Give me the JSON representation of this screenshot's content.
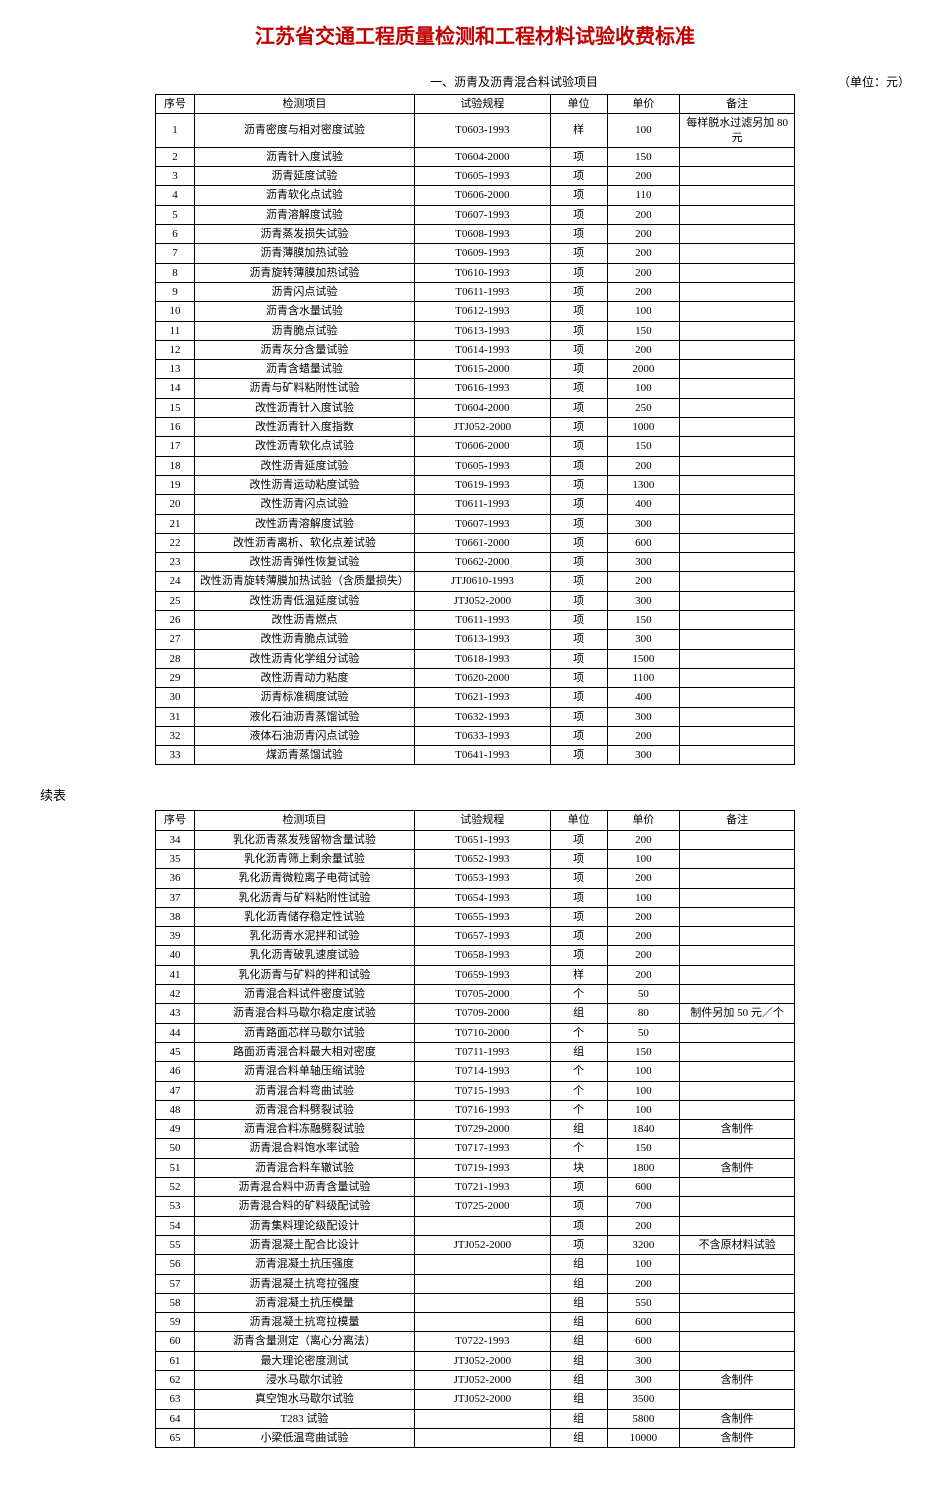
{
  "title": "江苏省交通工程质量检测和工程材料试验收费标准",
  "section1_label": "一、沥青及沥青混合料试验项目",
  "unit_label": "（单位：元）",
  "continue_label": "续表",
  "headers": {
    "seq": "序号",
    "item": "检测项目",
    "spec": "试验规程",
    "unit": "单位",
    "price": "单价",
    "note": "备注"
  },
  "table1": [
    {
      "seq": "1",
      "item": "沥青密度与相对密度试验",
      "spec": "T0603-1993",
      "unit": "样",
      "price": "100",
      "note": "每样脱水过滤另加 80 元"
    },
    {
      "seq": "2",
      "item": "沥青针入度试验",
      "spec": "T0604-2000",
      "unit": "项",
      "price": "150",
      "note": ""
    },
    {
      "seq": "3",
      "item": "沥青延度试验",
      "spec": "T0605-1993",
      "unit": "项",
      "price": "200",
      "note": ""
    },
    {
      "seq": "4",
      "item": "沥青软化点试验",
      "spec": "T0606-2000",
      "unit": "项",
      "price": "110",
      "note": ""
    },
    {
      "seq": "5",
      "item": "沥青溶解度试验",
      "spec": "T0607-1993",
      "unit": "项",
      "price": "200",
      "note": ""
    },
    {
      "seq": "6",
      "item": "沥青蒸发损失试验",
      "spec": "T0608-1993",
      "unit": "项",
      "price": "200",
      "note": ""
    },
    {
      "seq": "7",
      "item": "沥青薄膜加热试验",
      "spec": "T0609-1993",
      "unit": "项",
      "price": "200",
      "note": ""
    },
    {
      "seq": "8",
      "item": "沥青旋转薄膜加热试验",
      "spec": "T0610-1993",
      "unit": "项",
      "price": "200",
      "note": ""
    },
    {
      "seq": "9",
      "item": "沥青闪点试验",
      "spec": "T0611-1993",
      "unit": "项",
      "price": "200",
      "note": ""
    },
    {
      "seq": "10",
      "item": "沥青含水量试验",
      "spec": "T0612-1993",
      "unit": "项",
      "price": "100",
      "note": ""
    },
    {
      "seq": "11",
      "item": "沥青脆点试验",
      "spec": "T0613-1993",
      "unit": "项",
      "price": "150",
      "note": ""
    },
    {
      "seq": "12",
      "item": "沥青灰分含量试验",
      "spec": "T0614-1993",
      "unit": "项",
      "price": "200",
      "note": ""
    },
    {
      "seq": "13",
      "item": "沥青含蜡量试验",
      "spec": "T0615-2000",
      "unit": "项",
      "price": "2000",
      "note": ""
    },
    {
      "seq": "14",
      "item": "沥青与矿料粘附性试验",
      "spec": "T0616-1993",
      "unit": "项",
      "price": "100",
      "note": ""
    },
    {
      "seq": "15",
      "item": "改性沥青针入度试验",
      "spec": "T0604-2000",
      "unit": "项",
      "price": "250",
      "note": ""
    },
    {
      "seq": "16",
      "item": "改性沥青针入度指数",
      "spec": "JTJ052-2000",
      "unit": "项",
      "price": "1000",
      "note": ""
    },
    {
      "seq": "17",
      "item": "改性沥青软化点试验",
      "spec": "T0606-2000",
      "unit": "项",
      "price": "150",
      "note": ""
    },
    {
      "seq": "18",
      "item": "改性沥青延度试验",
      "spec": "T0605-1993",
      "unit": "项",
      "price": "200",
      "note": ""
    },
    {
      "seq": "19",
      "item": "改性沥青运动粘度试验",
      "spec": "T0619-1993",
      "unit": "项",
      "price": "1300",
      "note": ""
    },
    {
      "seq": "20",
      "item": "改性沥青闪点试验",
      "spec": "T0611-1993",
      "unit": "项",
      "price": "400",
      "note": ""
    },
    {
      "seq": "21",
      "item": "改性沥青溶解度试验",
      "spec": "T0607-1993",
      "unit": "项",
      "price": "300",
      "note": ""
    },
    {
      "seq": "22",
      "item": "改性沥青离析、软化点差试验",
      "spec": "T0661-2000",
      "unit": "项",
      "price": "600",
      "note": ""
    },
    {
      "seq": "23",
      "item": "改性沥青弹性恢复试验",
      "spec": "T0662-2000",
      "unit": "项",
      "price": "300",
      "note": ""
    },
    {
      "seq": "24",
      "item": "改性沥青旋转薄膜加热试验（含质量损失）",
      "spec": "JTJ0610-1993",
      "unit": "项",
      "price": "200",
      "note": ""
    },
    {
      "seq": "25",
      "item": "改性沥青低温延度试验",
      "spec": "JTJ052-2000",
      "unit": "项",
      "price": "300",
      "note": ""
    },
    {
      "seq": "26",
      "item": "改性沥青燃点",
      "spec": "T0611-1993",
      "unit": "项",
      "price": "150",
      "note": ""
    },
    {
      "seq": "27",
      "item": "改性沥青脆点试验",
      "spec": "T0613-1993",
      "unit": "项",
      "price": "300",
      "note": ""
    },
    {
      "seq": "28",
      "item": "改性沥青化学组分试验",
      "spec": "T0618-1993",
      "unit": "项",
      "price": "1500",
      "note": ""
    },
    {
      "seq": "29",
      "item": "改性沥青动力粘度",
      "spec": "T0620-2000",
      "unit": "项",
      "price": "1100",
      "note": ""
    },
    {
      "seq": "30",
      "item": "沥青标准稠度试验",
      "spec": "T0621-1993",
      "unit": "项",
      "price": "400",
      "note": ""
    },
    {
      "seq": "31",
      "item": "液化石油沥青蒸馏试验",
      "spec": "T0632-1993",
      "unit": "项",
      "price": "300",
      "note": ""
    },
    {
      "seq": "32",
      "item": "液体石油沥青闪点试验",
      "spec": "T0633-1993",
      "unit": "项",
      "price": "200",
      "note": ""
    },
    {
      "seq": "33",
      "item": "煤沥青蒸馏试验",
      "spec": "T0641-1993",
      "unit": "项",
      "price": "300",
      "note": ""
    }
  ],
  "table2": [
    {
      "seq": "34",
      "item": "乳化沥青蒸发残留物含量试验",
      "spec": "T0651-1993",
      "unit": "项",
      "price": "200",
      "note": ""
    },
    {
      "seq": "35",
      "item": "乳化沥青筛上剩余量试验",
      "spec": "T0652-1993",
      "unit": "项",
      "price": "100",
      "note": ""
    },
    {
      "seq": "36",
      "item": "乳化沥青微粒离子电荷试验",
      "spec": "T0653-1993",
      "unit": "项",
      "price": "200",
      "note": ""
    },
    {
      "seq": "37",
      "item": "乳化沥青与矿料粘附性试验",
      "spec": "T0654-1993",
      "unit": "项",
      "price": "100",
      "note": ""
    },
    {
      "seq": "38",
      "item": "乳化沥青储存稳定性试验",
      "spec": "T0655-1993",
      "unit": "项",
      "price": "200",
      "note": ""
    },
    {
      "seq": "39",
      "item": "乳化沥青水泥拌和试验",
      "spec": "T0657-1993",
      "unit": "项",
      "price": "200",
      "note": ""
    },
    {
      "seq": "40",
      "item": "乳化沥青破乳速度试验",
      "spec": "T0658-1993",
      "unit": "项",
      "price": "200",
      "note": ""
    },
    {
      "seq": "41",
      "item": "乳化沥青与矿料的拌和试验",
      "spec": "T0659-1993",
      "unit": "样",
      "price": "200",
      "note": ""
    },
    {
      "seq": "42",
      "item": "沥青混合料试件密度试验",
      "spec": "T0705-2000",
      "unit": "个",
      "price": "50",
      "note": ""
    },
    {
      "seq": "43",
      "item": "沥青混合料马歇尔稳定度试验",
      "spec": "T0709-2000",
      "unit": "组",
      "price": "80",
      "note": "制件另加 50 元／个"
    },
    {
      "seq": "44",
      "item": "沥青路面芯样马歇尔试验",
      "spec": "T0710-2000",
      "unit": "个",
      "price": "50",
      "note": ""
    },
    {
      "seq": "45",
      "item": "路面沥青混合料最大相对密度",
      "spec": "T0711-1993",
      "unit": "组",
      "price": "150",
      "note": ""
    },
    {
      "seq": "46",
      "item": "沥青混合料单轴压缩试验",
      "spec": "T0714-1993",
      "unit": "个",
      "price": "100",
      "note": ""
    },
    {
      "seq": "47",
      "item": "沥青混合料弯曲试验",
      "spec": "T0715-1993",
      "unit": "个",
      "price": "100",
      "note": ""
    },
    {
      "seq": "48",
      "item": "沥青混合料劈裂试验",
      "spec": "T0716-1993",
      "unit": "个",
      "price": "100",
      "note": ""
    },
    {
      "seq": "49",
      "item": "沥青混合料冻融劈裂试验",
      "spec": "T0729-2000",
      "unit": "组",
      "price": "1840",
      "note": "含制件"
    },
    {
      "seq": "50",
      "item": "沥青混合料饱水率试验",
      "spec": "T0717-1993",
      "unit": "个",
      "price": "150",
      "note": ""
    },
    {
      "seq": "51",
      "item": "沥青混合料车辙试验",
      "spec": "T0719-1993",
      "unit": "块",
      "price": "1800",
      "note": "含制件"
    },
    {
      "seq": "52",
      "item": "沥青混合料中沥青含量试验",
      "spec": "T0721-1993",
      "unit": "项",
      "price": "600",
      "note": ""
    },
    {
      "seq": "53",
      "item": "沥青混合料的矿料级配试验",
      "spec": "T0725-2000",
      "unit": "项",
      "price": "700",
      "note": ""
    },
    {
      "seq": "54",
      "item": "沥青集料理论级配设计",
      "spec": "",
      "unit": "项",
      "price": "200",
      "note": ""
    },
    {
      "seq": "55",
      "item": "沥青混凝土配合比设计",
      "spec": "JTJ052-2000",
      "unit": "项",
      "price": "3200",
      "note": "不含原材料试验"
    },
    {
      "seq": "56",
      "item": "沥青混凝土抗压强度",
      "spec": "",
      "unit": "组",
      "price": "100",
      "note": ""
    },
    {
      "seq": "57",
      "item": "沥青混凝土抗弯拉强度",
      "spec": "",
      "unit": "组",
      "price": "200",
      "note": ""
    },
    {
      "seq": "58",
      "item": "沥青混凝土抗压模量",
      "spec": "",
      "unit": "组",
      "price": "550",
      "note": ""
    },
    {
      "seq": "59",
      "item": "沥青混凝土抗弯拉模量",
      "spec": "",
      "unit": "组",
      "price": "600",
      "note": ""
    },
    {
      "seq": "60",
      "item": "沥青含量测定（离心分离法）",
      "spec": "T0722-1993",
      "unit": "组",
      "price": "600",
      "note": ""
    },
    {
      "seq": "61",
      "item": "最大理论密度测试",
      "spec": "JTJ052-2000",
      "unit": "组",
      "price": "300",
      "note": ""
    },
    {
      "seq": "62",
      "item": "浸水马歇尔试验",
      "spec": "JTJ052-2000",
      "unit": "组",
      "price": "300",
      "note": "含制件"
    },
    {
      "seq": "63",
      "item": "真空饱水马歇尔试验",
      "spec": "JTJ052-2000",
      "unit": "组",
      "price": "3500",
      "note": ""
    },
    {
      "seq": "64",
      "item": "T283 试验",
      "spec": "",
      "unit": "组",
      "price": "5800",
      "note": "含制件"
    },
    {
      "seq": "65",
      "item": "小梁低温弯曲试验",
      "spec": "",
      "unit": "组",
      "price": "10000",
      "note": "含制件"
    }
  ]
}
